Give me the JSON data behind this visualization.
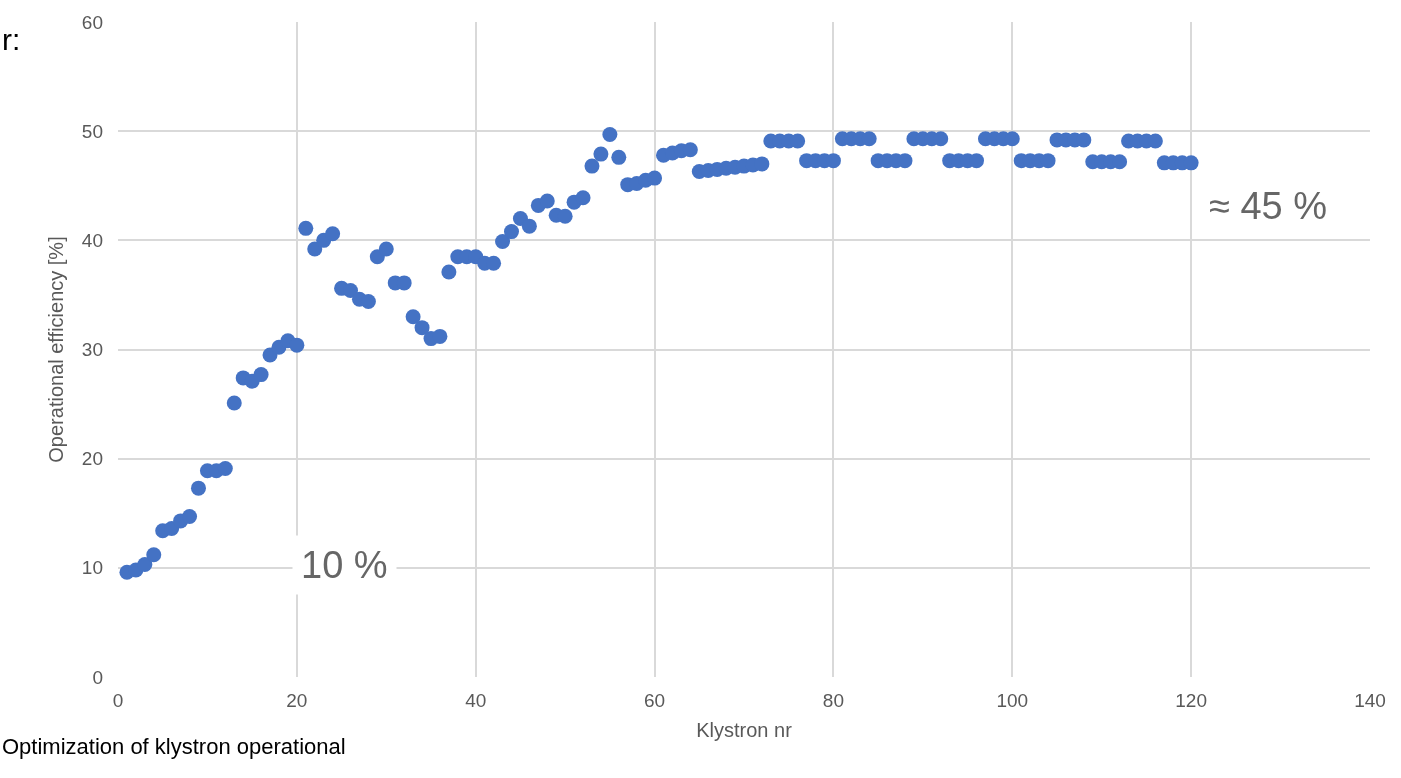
{
  "chart_data": {
    "type": "scatter",
    "xlabel": "Klystron nr",
    "ylabel": "Operational efficiency [%]",
    "x": [
      1,
      2,
      3,
      4,
      5,
      6,
      7,
      8,
      9,
      10,
      11,
      12,
      13,
      14,
      15,
      16,
      17,
      18,
      19,
      20,
      21,
      22,
      23,
      24,
      25,
      26,
      27,
      28,
      29,
      30,
      31,
      32,
      33,
      34,
      35,
      36,
      37,
      38,
      39,
      40,
      41,
      42,
      43,
      44,
      45,
      46,
      47,
      48,
      49,
      50,
      51,
      52,
      53,
      54,
      55,
      56,
      57,
      58,
      59,
      60,
      61,
      62,
      63,
      64,
      65,
      66,
      67,
      68,
      69,
      70,
      71,
      72,
      73,
      74,
      75,
      76,
      77,
      78,
      79,
      80,
      81,
      82,
      83,
      84,
      85,
      86,
      87,
      88,
      89,
      90,
      91,
      92,
      93,
      94,
      95,
      96,
      97,
      98,
      99,
      100,
      101,
      102,
      103,
      104,
      105,
      106,
      107,
      108,
      109,
      110,
      111,
      112,
      113,
      114,
      115,
      116,
      117,
      118,
      119,
      120
    ],
    "series": [
      {
        "color": "#4472c4",
        "values": [
          9.6,
          9.8,
          10.3,
          11.2,
          13.4,
          13.6,
          14.3,
          14.7,
          17.3,
          18.9,
          18.9,
          19.1,
          25.1,
          27.4,
          27.1,
          27.7,
          29.5,
          30.2,
          30.8,
          30.4,
          41.1,
          39.2,
          40.0,
          40.6,
          35.6,
          35.4,
          34.6,
          34.4,
          38.5,
          39.2,
          36.1,
          36.1,
          33.0,
          32.0,
          31.0,
          31.2,
          37.1,
          38.5,
          38.5,
          38.5,
          37.9,
          37.9,
          39.9,
          40.8,
          42.0,
          41.3,
          43.2,
          43.6,
          42.3,
          42.2,
          43.5,
          43.9,
          46.8,
          47.9,
          49.7,
          47.6,
          45.1,
          45.2,
          45.5,
          45.7,
          47.8,
          48.0,
          48.2,
          48.3,
          46.3,
          46.4,
          46.5,
          46.6,
          46.7,
          46.8,
          46.9,
          47.0,
          49.1,
          49.1,
          49.1,
          49.1,
          47.3,
          47.3,
          47.3,
          47.3,
          49.3,
          49.3,
          49.3,
          49.3,
          47.3,
          47.3,
          47.3,
          47.3,
          49.3,
          49.3,
          49.3,
          49.3,
          47.3,
          47.3,
          47.3,
          47.3,
          49.3,
          49.3,
          49.3,
          49.3,
          47.3,
          47.3,
          47.3,
          47.3,
          49.2,
          49.2,
          49.2,
          49.2,
          47.2,
          47.2,
          47.2,
          47.2,
          49.1,
          49.1,
          49.1,
          49.1,
          47.1,
          47.1,
          47.1,
          47.1
        ]
      }
    ],
    "xlim": [
      0,
      140
    ],
    "xticks": [
      0,
      20,
      40,
      60,
      80,
      100,
      120,
      140
    ],
    "ylim": [
      0,
      60
    ],
    "yticks": [
      0,
      10,
      20,
      30,
      40,
      50,
      60
    ],
    "grid": true,
    "marker": "circle",
    "annotations": [
      "10 %",
      "≈ 45 %",
      "r:",
      "Optimization of klystron operational"
    ]
  }
}
